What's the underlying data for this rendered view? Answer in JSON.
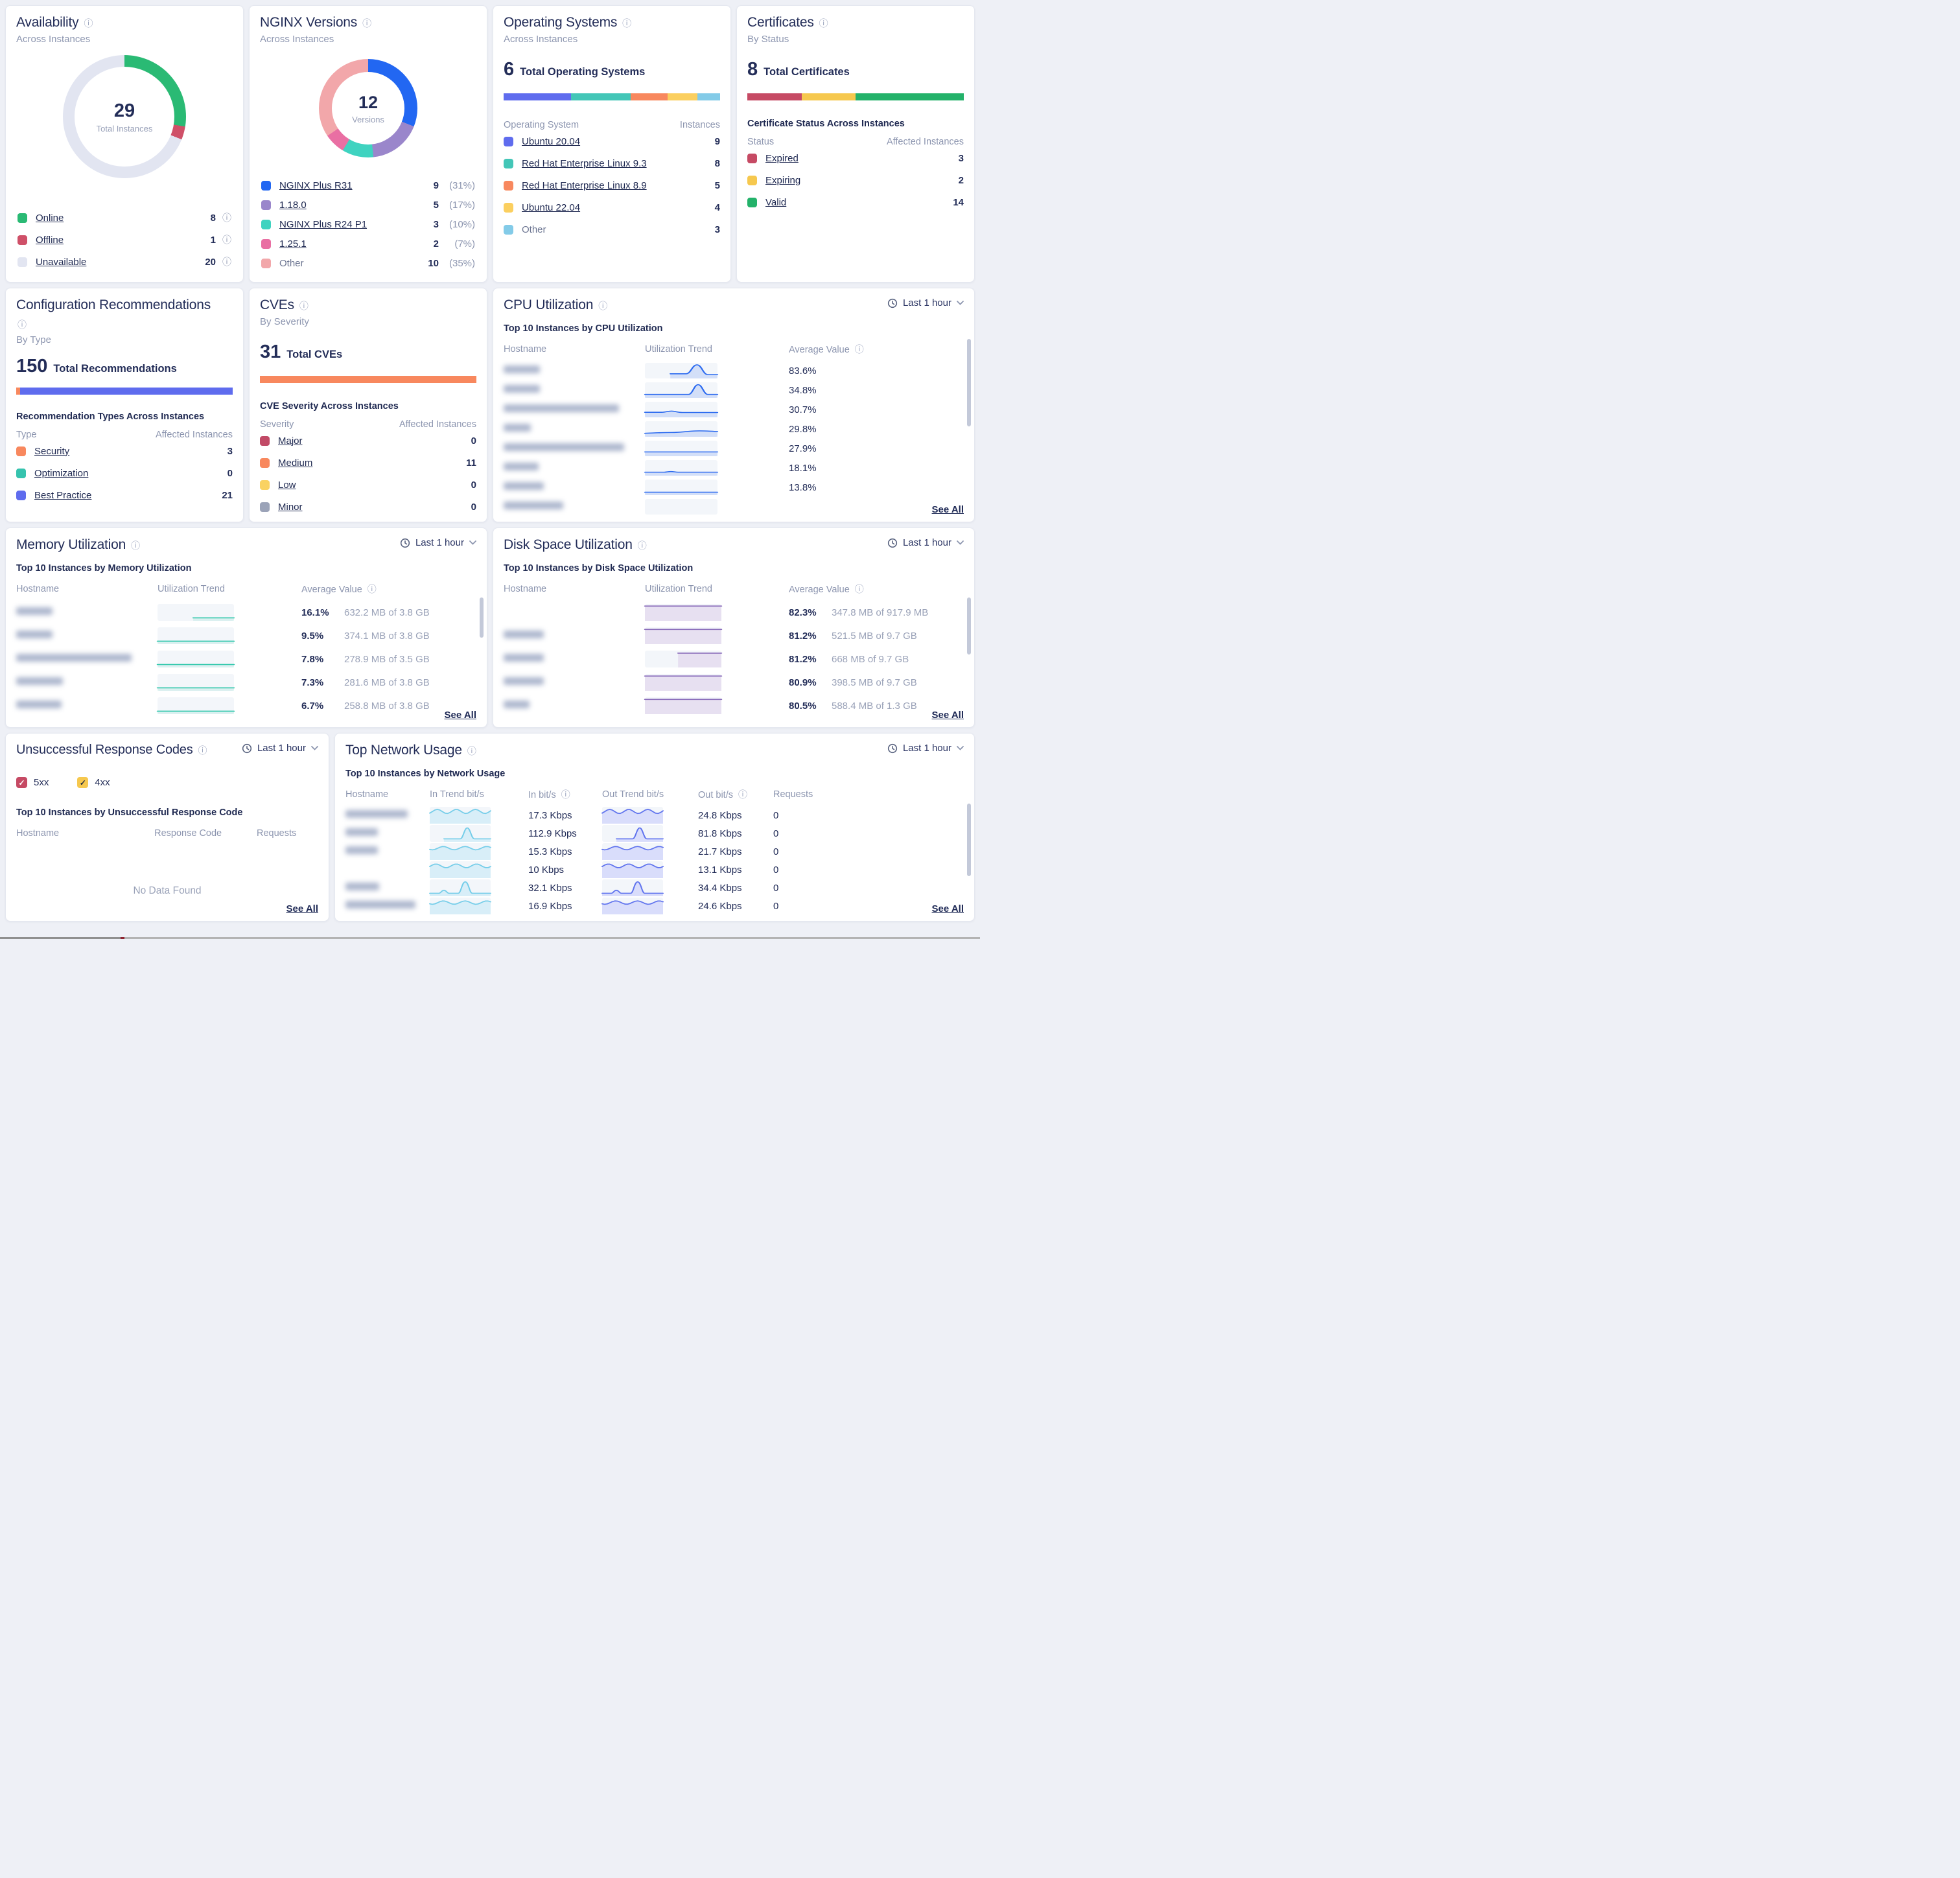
{
  "availability": {
    "title": "Availability",
    "subtitle": "Across Instances",
    "total": "29",
    "total_label": "Total Instances",
    "items": [
      {
        "label": "Online",
        "num": 8,
        "display": "8",
        "color": "#2aba74",
        "link": true
      },
      {
        "label": "Offline",
        "num": 1,
        "display": "1",
        "color": "#cf5068",
        "link": true
      },
      {
        "label": "Unavailable",
        "num": 20,
        "display": "20",
        "color": "#e2e5f1",
        "link": true
      }
    ]
  },
  "nginx_versions": {
    "title": "NGINX Versions",
    "subtitle": "Across Instances",
    "total": "12",
    "total_label": "Versions",
    "items": [
      {
        "label": "NGINX Plus R31",
        "num": 9,
        "display": "9",
        "pct": "(31%)",
        "color": "#2267f2",
        "link": true
      },
      {
        "label": "1.18.0",
        "num": 5,
        "display": "5",
        "pct": "(17%)",
        "color": "#9a86cb",
        "link": true
      },
      {
        "label": "NGINX Plus R24 P1",
        "num": 3,
        "display": "3",
        "pct": "(10%)",
        "color": "#3fd3c0",
        "link": true
      },
      {
        "label": "1.25.1",
        "num": 2,
        "display": "2",
        "pct": "(7%)",
        "color": "#e96fa3",
        "link": true
      },
      {
        "label": "Other",
        "num": 10,
        "display": "10",
        "pct": "(35%)",
        "color": "#f2a7aa",
        "link": false
      }
    ]
  },
  "operating_systems": {
    "title": "Operating Systems",
    "subtitle": "Across Instances",
    "total": "6",
    "total_label": "Total Operating Systems",
    "bar": [
      {
        "color": "#5f6cee",
        "pct": 31
      },
      {
        "color": "#43c6b7",
        "pct": 27.6
      },
      {
        "color": "#f8885e",
        "pct": 17.2
      },
      {
        "color": "#fbcf5f",
        "pct": 13.8
      },
      {
        "color": "#83cbe8",
        "pct": 10.4
      }
    ],
    "col_left": "Operating System",
    "col_right": "Instances",
    "rows": [
      {
        "label": "Ubuntu 20.04",
        "value": "9",
        "color": "#5f6cee",
        "link": true
      },
      {
        "label": "Red Hat Enterprise Linux 9.3",
        "value": "8",
        "color": "#43c6b7",
        "link": true
      },
      {
        "label": "Red Hat Enterprise Linux 8.9",
        "value": "5",
        "color": "#f8885e",
        "link": true
      },
      {
        "label": "Ubuntu 22.04",
        "value": "4",
        "color": "#fbcf5f",
        "link": true
      },
      {
        "label": "Other",
        "value": "3",
        "color": "#83cbe8",
        "link": false
      }
    ]
  },
  "certificates": {
    "title": "Certificates",
    "subtitle": "By Status",
    "total": "8",
    "total_label": "Total Certificates",
    "section": "Certificate Status Across Instances",
    "bar": [
      {
        "color": "#c64a64",
        "pct": 25
      },
      {
        "color": "#f6c84e",
        "pct": 25
      },
      {
        "color": "#23b26a",
        "pct": 50
      }
    ],
    "col_left": "Status",
    "col_right": "Affected Instances",
    "rows": [
      {
        "label": "Expired",
        "value": "3",
        "color": "#c64a64",
        "link": true
      },
      {
        "label": "Expiring",
        "value": "2",
        "color": "#f6c84e",
        "link": true
      },
      {
        "label": "Valid",
        "value": "14",
        "color": "#23b26a",
        "link": true
      }
    ]
  },
  "recommendations": {
    "title": "Configuration Recommendations",
    "subtitle": "By Type",
    "total": "150",
    "total_label": "Total Recommendations",
    "section": "Recommendation Types Across Instances",
    "bar": [
      {
        "color": "#f8885e",
        "pct": 1.9
      },
      {
        "color": "#5f6cee",
        "pct": 98.1
      }
    ],
    "col_left": "Type",
    "col_right": "Affected Instances",
    "rows": [
      {
        "label": "Security",
        "value": "3",
        "color": "#f8885e",
        "link": true
      },
      {
        "label": "Optimization",
        "value": "0",
        "color": "#36c3ae",
        "link": true
      },
      {
        "label": "Best Practice",
        "value": "21",
        "color": "#5f6cee",
        "link": true
      }
    ]
  },
  "cves": {
    "title": "CVEs",
    "subtitle": "By Severity",
    "total": "31",
    "total_label": "Total CVEs",
    "section": "CVE Severity Across Instances",
    "bar": [
      {
        "color": "#f8885e",
        "pct": 100
      }
    ],
    "col_left": "Severity",
    "col_right": "Affected Instances",
    "rows": [
      {
        "label": "Major",
        "value": "0",
        "color": "#c14a66",
        "link": true
      },
      {
        "label": "Medium",
        "value": "11",
        "color": "#f8885e",
        "link": true
      },
      {
        "label": "Low",
        "value": "0",
        "color": "#f9d262",
        "link": true
      },
      {
        "label": "Minor",
        "value": "0",
        "color": "#9ba3b8",
        "link": true
      }
    ]
  },
  "cpu": {
    "title": "CPU Utilization",
    "time": "Last 1 hour",
    "section": "Top 10 Instances by CPU Utilization",
    "cols": {
      "hostname": "Hostname",
      "trend": "Utilization Trend",
      "value": "Average Value"
    },
    "see_all": "See All",
    "line": "#2b6af0",
    "fill": "rgba(43,106,240,0.16)",
    "rows": [
      {
        "hostname_w": 56,
        "trend": "spike-late-half",
        "value": "83.6%"
      },
      {
        "hostname_w": 56,
        "trend": "spike-late",
        "value": "34.8%"
      },
      {
        "hostname_w": 178,
        "trend": "low-bump",
        "value": "30.7%"
      },
      {
        "hostname_w": 42,
        "trend": "slow-rise",
        "value": "29.8%"
      },
      {
        "hostname_w": 186,
        "trend": "flat-mid",
        "value": "27.9%"
      },
      {
        "hostname_w": 54,
        "trend": "flat-bump",
        "value": "18.1%"
      },
      {
        "hostname_w": 62,
        "trend": "flat-low",
        "value": "13.8%"
      },
      {
        "hostname_w": 92,
        "trend": "empty",
        "value": ""
      }
    ]
  },
  "memory": {
    "title": "Memory Utilization",
    "time": "Last 1 hour",
    "section": "Top 10 Instances by Memory Utilization",
    "cols": {
      "hostname": "Hostname",
      "trend": "Utilization Trend",
      "value": "Average Value"
    },
    "see_all": "See All",
    "line": "#2fc7ab",
    "fill": "rgba(47,199,171,0.12)",
    "rows": [
      {
        "hostname_w": 56,
        "trend": "flat-teal-half",
        "pct": "16.1%",
        "detail": "632.2 MB of 3.8 GB"
      },
      {
        "hostname_w": 56,
        "trend": "flat-teal",
        "pct": "9.5%",
        "detail": "374.1 MB of 3.8 GB"
      },
      {
        "hostname_w": 178,
        "trend": "flat-teal",
        "pct": "7.8%",
        "detail": "278.9 MB of 3.5 GB"
      },
      {
        "hostname_w": 72,
        "trend": "flat-teal",
        "pct": "7.3%",
        "detail": "281.6 MB of 3.8 GB"
      },
      {
        "hostname_w": 70,
        "trend": "flat-teal",
        "pct": "6.7%",
        "detail": "258.8 MB of 3.8 GB"
      }
    ]
  },
  "disk": {
    "title": "Disk Space Utilization",
    "time": "Last 1 hour",
    "section": "Top 10 Instances by Disk Space Utilization",
    "cols": {
      "hostname": "Hostname",
      "trend": "Utilization Trend",
      "value": "Average Value"
    },
    "see_all": "See All",
    "line": "#8a6dbb",
    "fill": "#e7e0f1",
    "rows": [
      {
        "hostname_w": 0,
        "trend": "top-flat",
        "pct": "82.3%",
        "detail": "347.8 MB of 917.9 MB"
      },
      {
        "hostname_w": 62,
        "trend": "top-flat",
        "pct": "81.2%",
        "detail": "521.5 MB of 9.7 GB"
      },
      {
        "hostname_w": 62,
        "trend": "top-flat-half",
        "pct": "81.2%",
        "detail": "668 MB of 9.7 GB"
      },
      {
        "hostname_w": 62,
        "trend": "top-flat",
        "pct": "80.9%",
        "detail": "398.5 MB of 9.7 GB"
      },
      {
        "hostname_w": 40,
        "trend": "top-flat",
        "pct": "80.5%",
        "detail": "588.4 MB of 1.3 GB"
      }
    ]
  },
  "response_codes": {
    "title": "Unsuccessful Response Codes",
    "time": "Last 1 hour",
    "filters": [
      {
        "label": "5xx",
        "checked": true,
        "color": "#c64a64",
        "check_color": "#ffffff"
      },
      {
        "label": "4xx",
        "checked": true,
        "color": "#f6c84e",
        "check_color": "#29323f"
      }
    ],
    "section": "Top 10 Instances by Unsuccessful Response Code",
    "cols": [
      "Hostname",
      "Response Code",
      "Requests"
    ],
    "empty": "No Data Found",
    "see_all": "See All"
  },
  "network": {
    "title": "Top Network Usage",
    "time": "Last 1 hour",
    "section": "Top 10 Instances by Network Usage",
    "cols": [
      "Hostname",
      "In Trend bit/s",
      "In bit/s",
      "Out Trend bit/s",
      "Out bit/s",
      "Requests"
    ],
    "in_line": "#74cde9",
    "in_fill": "#d8eef8",
    "out_line": "#5f73ee",
    "out_fill": "#d9ddfb",
    "see_all": "See All",
    "rows": [
      {
        "hostname_w": 96,
        "trend": "wave",
        "in": "17.3 Kbps",
        "out": "24.8 Kbps",
        "requests": "0"
      },
      {
        "hostname_w": 50,
        "trend": "spike-mid",
        "in": "112.9 Kbps",
        "out": "81.8 Kbps",
        "requests": "0"
      },
      {
        "hostname_w": 50,
        "trend": "wave-2",
        "in": "15.3 Kbps",
        "out": "21.7 Kbps",
        "requests": "0"
      },
      {
        "hostname_w": 0,
        "trend": "wave-3",
        "in": "10 Kbps",
        "out": "13.1 Kbps",
        "requests": "0"
      },
      {
        "hostname_w": 52,
        "trend": "bump-then-spike",
        "in": "32.1 Kbps",
        "out": "34.4 Kbps",
        "requests": "0"
      },
      {
        "hostname_w": 108,
        "trend": "wave-2",
        "in": "16.9 Kbps",
        "out": "24.6 Kbps",
        "requests": "0"
      }
    ]
  }
}
